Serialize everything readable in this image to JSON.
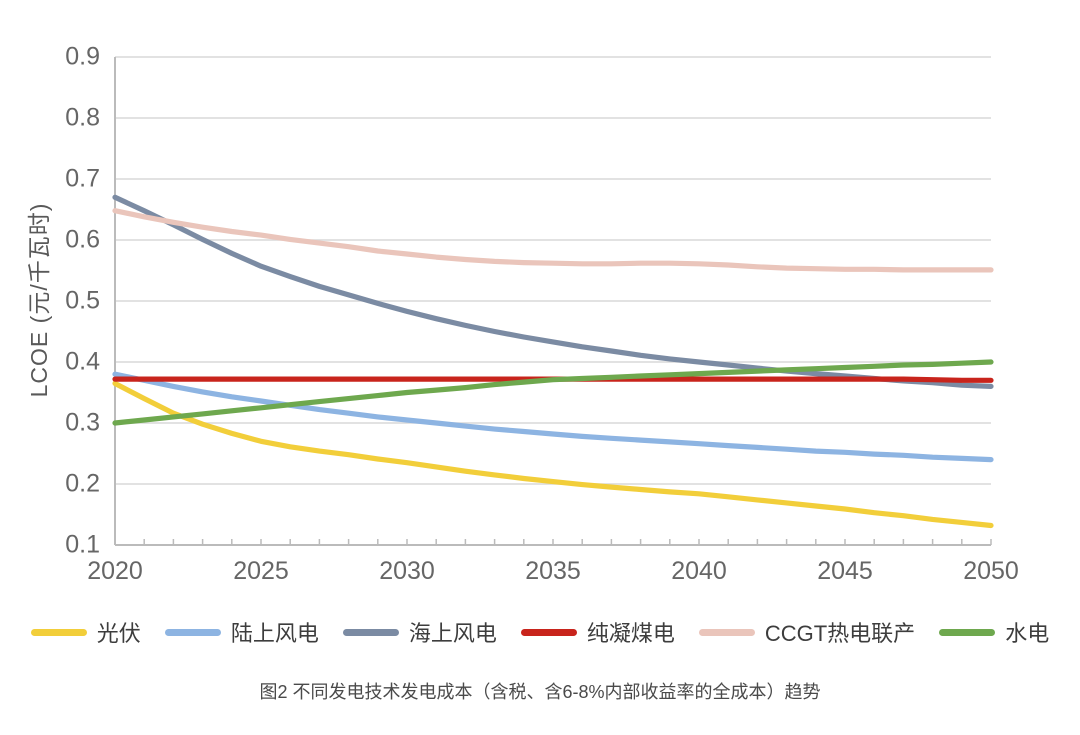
{
  "caption": "图2 不同发电技术发电成本（含税、含6-8%内部收益率的全成本）趋势",
  "chart_data": {
    "type": "line",
    "title": "",
    "xlabel": "",
    "ylabel": "LCOE (元/千瓦时)",
    "xlim": [
      2020,
      2050
    ],
    "ylim": [
      0.1,
      0.9
    ],
    "grid": "horizontal",
    "legend_position": "bottom",
    "axis_color": "#bbbbbb",
    "gridline_color": "#d9d9d9",
    "x": [
      2020,
      2021,
      2022,
      2023,
      2024,
      2025,
      2026,
      2027,
      2028,
      2029,
      2030,
      2031,
      2032,
      2033,
      2034,
      2035,
      2036,
      2037,
      2038,
      2039,
      2040,
      2041,
      2042,
      2043,
      2044,
      2045,
      2046,
      2047,
      2048,
      2049,
      2050
    ],
    "xticks": [
      "2020",
      "2025",
      "2030",
      "2035",
      "2040",
      "2045",
      "2050"
    ],
    "yticks": [
      "0.1",
      "0.2",
      "0.3",
      "0.4",
      "0.5",
      "0.6",
      "0.7",
      "0.8",
      "0.9"
    ],
    "series": [
      {
        "id": "pv",
        "name": "光伏",
        "color": "#F2CE3A",
        "values": [
          0.365,
          0.34,
          0.316,
          0.298,
          0.283,
          0.27,
          0.261,
          0.254,
          0.248,
          0.241,
          0.235,
          0.228,
          0.221,
          0.215,
          0.209,
          0.204,
          0.199,
          0.195,
          0.191,
          0.187,
          0.184,
          0.179,
          0.174,
          0.169,
          0.164,
          0.159,
          0.153,
          0.148,
          0.142,
          0.137,
          0.132
        ]
      },
      {
        "id": "onshore-wind",
        "name": "陆上风电",
        "color": "#8DB4E2",
        "values": [
          0.38,
          0.37,
          0.36,
          0.351,
          0.343,
          0.336,
          0.329,
          0.322,
          0.316,
          0.31,
          0.305,
          0.3,
          0.295,
          0.29,
          0.286,
          0.282,
          0.278,
          0.275,
          0.272,
          0.269,
          0.266,
          0.263,
          0.26,
          0.257,
          0.254,
          0.252,
          0.249,
          0.247,
          0.244,
          0.242,
          0.24
        ]
      },
      {
        "id": "offshore-wind",
        "name": "海上风电",
        "color": "#7B8BA3",
        "values": [
          0.67,
          0.648,
          0.625,
          0.601,
          0.578,
          0.557,
          0.54,
          0.524,
          0.51,
          0.496,
          0.483,
          0.471,
          0.46,
          0.45,
          0.441,
          0.433,
          0.425,
          0.418,
          0.411,
          0.405,
          0.4,
          0.395,
          0.39,
          0.385,
          0.381,
          0.377,
          0.373,
          0.369,
          0.366,
          0.362,
          0.36
        ]
      },
      {
        "id": "coal",
        "name": "纯凝煤电",
        "color": "#C8241C",
        "values": [
          0.372,
          0.372,
          0.372,
          0.372,
          0.372,
          0.372,
          0.372,
          0.372,
          0.372,
          0.372,
          0.372,
          0.372,
          0.372,
          0.372,
          0.372,
          0.372,
          0.372,
          0.372,
          0.372,
          0.372,
          0.372,
          0.372,
          0.372,
          0.372,
          0.372,
          0.372,
          0.372,
          0.372,
          0.371,
          0.37,
          0.37
        ]
      },
      {
        "id": "ccgt-chp",
        "name": "CCGT热电联产",
        "color": "#EAC5BB",
        "values": [
          0.648,
          0.638,
          0.629,
          0.621,
          0.614,
          0.608,
          0.601,
          0.595,
          0.589,
          0.582,
          0.577,
          0.572,
          0.568,
          0.565,
          0.563,
          0.562,
          0.561,
          0.561,
          0.562,
          0.562,
          0.561,
          0.559,
          0.556,
          0.554,
          0.553,
          0.552,
          0.552,
          0.551,
          0.551,
          0.551,
          0.551
        ]
      },
      {
        "id": "hydro",
        "name": "水电",
        "color": "#6EA84E",
        "values": [
          0.3,
          0.305,
          0.31,
          0.315,
          0.32,
          0.325,
          0.33,
          0.335,
          0.34,
          0.345,
          0.35,
          0.354,
          0.358,
          0.363,
          0.367,
          0.371,
          0.373,
          0.375,
          0.377,
          0.379,
          0.381,
          0.383,
          0.385,
          0.387,
          0.389,
          0.391,
          0.393,
          0.395,
          0.396,
          0.398,
          0.4
        ]
      }
    ]
  }
}
